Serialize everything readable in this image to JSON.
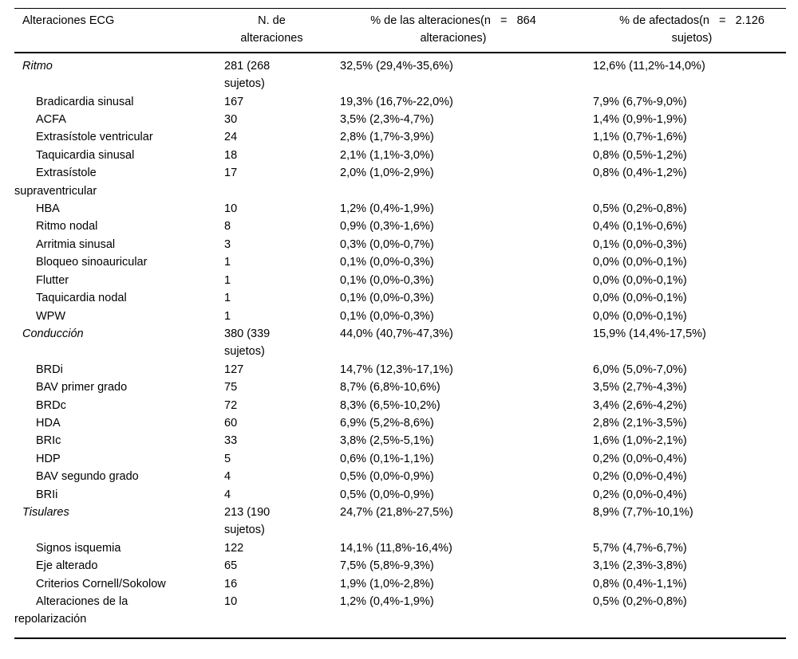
{
  "table": {
    "headers": {
      "alteraciones_ecg": "Alteraciones ECG",
      "n_de_alteraciones": "N. de\nalteraciones",
      "pct_alteraciones": "% de las alteraciones(n   =   864\nalteraciones)",
      "pct_afectados": "% de afectados(n   =   2.126\nsujetos)"
    },
    "rows": [
      {
        "label": "Ritmo",
        "category": true,
        "n": "281 (268\nsujetos)",
        "pct_alteraciones": "32,5% (29,4%-35,6%)",
        "pct_afectados": "12,6% (11,2%-14,0%)"
      },
      {
        "label": "Bradicardia sinusal",
        "category": false,
        "n": "167",
        "pct_alteraciones": "19,3% (16,7%-22,0%)",
        "pct_afectados": "7,9% (6,7%-9,0%)"
      },
      {
        "label": "ACFA",
        "category": false,
        "n": "30",
        "pct_alteraciones": "3,5% (2,3%-4,7%)",
        "pct_afectados": "1,4% (0,9%-1,9%)"
      },
      {
        "label": "Extrasístole ventricular",
        "category": false,
        "n": "24",
        "pct_alteraciones": "2,8% (1,7%-3,9%)",
        "pct_afectados": "1,1% (0,7%-1,6%)"
      },
      {
        "label": "Taquicardia sinusal",
        "category": false,
        "n": "18",
        "pct_alteraciones": "2,1% (1,1%-3,0%)",
        "pct_afectados": "0,8% (0,5%-1,2%)"
      },
      {
        "label": "Extrasístole\nsupraventricular",
        "category": false,
        "n": "17",
        "pct_alteraciones": "2,0% (1,0%-2,9%)",
        "pct_afectados": "0,8% (0,4%-1,2%)"
      },
      {
        "label": "HBA",
        "category": false,
        "n": "10",
        "pct_alteraciones": "1,2% (0,4%-1,9%)",
        "pct_afectados": "0,5% (0,2%-0,8%)"
      },
      {
        "label": "Ritmo nodal",
        "category": false,
        "n": "8",
        "pct_alteraciones": "0,9% (0,3%-1,6%)",
        "pct_afectados": "0,4% (0,1%-0,6%)"
      },
      {
        "label": "Arritmia sinusal",
        "category": false,
        "n": "3",
        "pct_alteraciones": "0,3% (0,0%-0,7%)",
        "pct_afectados": "0,1% (0,0%-0,3%)"
      },
      {
        "label": "Bloqueo sinoauricular",
        "category": false,
        "n": "1",
        "pct_alteraciones": "0,1% (0,0%-0,3%)",
        "pct_afectados": "0,0% (0,0%-0,1%)"
      },
      {
        "label": "Flutter",
        "category": false,
        "n": "1",
        "pct_alteraciones": "0,1% (0,0%-0,3%)",
        "pct_afectados": "0,0% (0,0%-0,1%)"
      },
      {
        "label": "Taquicardia nodal",
        "category": false,
        "n": "1",
        "pct_alteraciones": "0,1% (0,0%-0,3%)",
        "pct_afectados": "0,0% (0,0%-0,1%)"
      },
      {
        "label": "WPW",
        "category": false,
        "n": "1",
        "pct_alteraciones": "0,1% (0,0%-0,3%)",
        "pct_afectados": "0,0% (0,0%-0,1%)"
      },
      {
        "label": "Conducción",
        "category": true,
        "n": "380 (339\nsujetos)",
        "pct_alteraciones": "44,0% (40,7%-47,3%)",
        "pct_afectados": "15,9% (14,4%-17,5%)"
      },
      {
        "label": "BRDi",
        "category": false,
        "n": "127",
        "pct_alteraciones": "14,7% (12,3%-17,1%)",
        "pct_afectados": "6,0% (5,0%-7,0%)"
      },
      {
        "label": "BAV primer grado",
        "category": false,
        "n": "75",
        "pct_alteraciones": "8,7% (6,8%-10,6%)",
        "pct_afectados": "3,5% (2,7%-4,3%)"
      },
      {
        "label": "BRDc",
        "category": false,
        "n": "72",
        "pct_alteraciones": "8,3% (6,5%-10,2%)",
        "pct_afectados": "3,4% (2,6%-4,2%)"
      },
      {
        "label": "HDA",
        "category": false,
        "n": "60",
        "pct_alteraciones": "6,9% (5,2%-8,6%)",
        "pct_afectados": "2,8% (2,1%-3,5%)"
      },
      {
        "label": "BRIc",
        "category": false,
        "n": "33",
        "pct_alteraciones": "3,8% (2,5%-5,1%)",
        "pct_afectados": "1,6% (1,0%-2,1%)"
      },
      {
        "label": "HDP",
        "category": false,
        "n": "5",
        "pct_alteraciones": "0,6% (0,1%-1,1%)",
        "pct_afectados": "0,2% (0,0%-0,4%)"
      },
      {
        "label": "BAV segundo grado",
        "category": false,
        "n": "4",
        "pct_alteraciones": "0,5% (0,0%-0,9%)",
        "pct_afectados": "0,2% (0,0%-0,4%)"
      },
      {
        "label": "BRIi",
        "category": false,
        "n": "4",
        "pct_alteraciones": "0,5% (0,0%-0,9%)",
        "pct_afectados": "0,2% (0,0%-0,4%)"
      },
      {
        "label": "Tisulares",
        "category": true,
        "n": "213 (190\nsujetos)",
        "pct_alteraciones": "24,7% (21,8%-27,5%)",
        "pct_afectados": "8,9% (7,7%-10,1%)"
      },
      {
        "label": "Signos isquemia",
        "category": false,
        "n": "122",
        "pct_alteraciones": "14,1% (11,8%-16,4%)",
        "pct_afectados": "5,7% (4,7%-6,7%)"
      },
      {
        "label": "Eje alterado",
        "category": false,
        "n": "65",
        "pct_alteraciones": "7,5% (5,8%-9,3%)",
        "pct_afectados": "3,1% (2,3%-3,8%)"
      },
      {
        "label": "Criterios Cornell/Sokolow",
        "category": false,
        "n": "16",
        "pct_alteraciones": "1,9% (1,0%-2,8%)",
        "pct_afectados": "0,8% (0,4%-1,1%)"
      },
      {
        "label": "Alteraciones de la\nrepolarización",
        "category": false,
        "n": "10",
        "pct_alteraciones": "1,2% (0,4%-1,9%)",
        "pct_afectados": "0,5% (0,2%-0,8%)"
      }
    ]
  },
  "colors": {
    "text": "#000000",
    "background": "#ffffff",
    "rule": "#000000"
  }
}
